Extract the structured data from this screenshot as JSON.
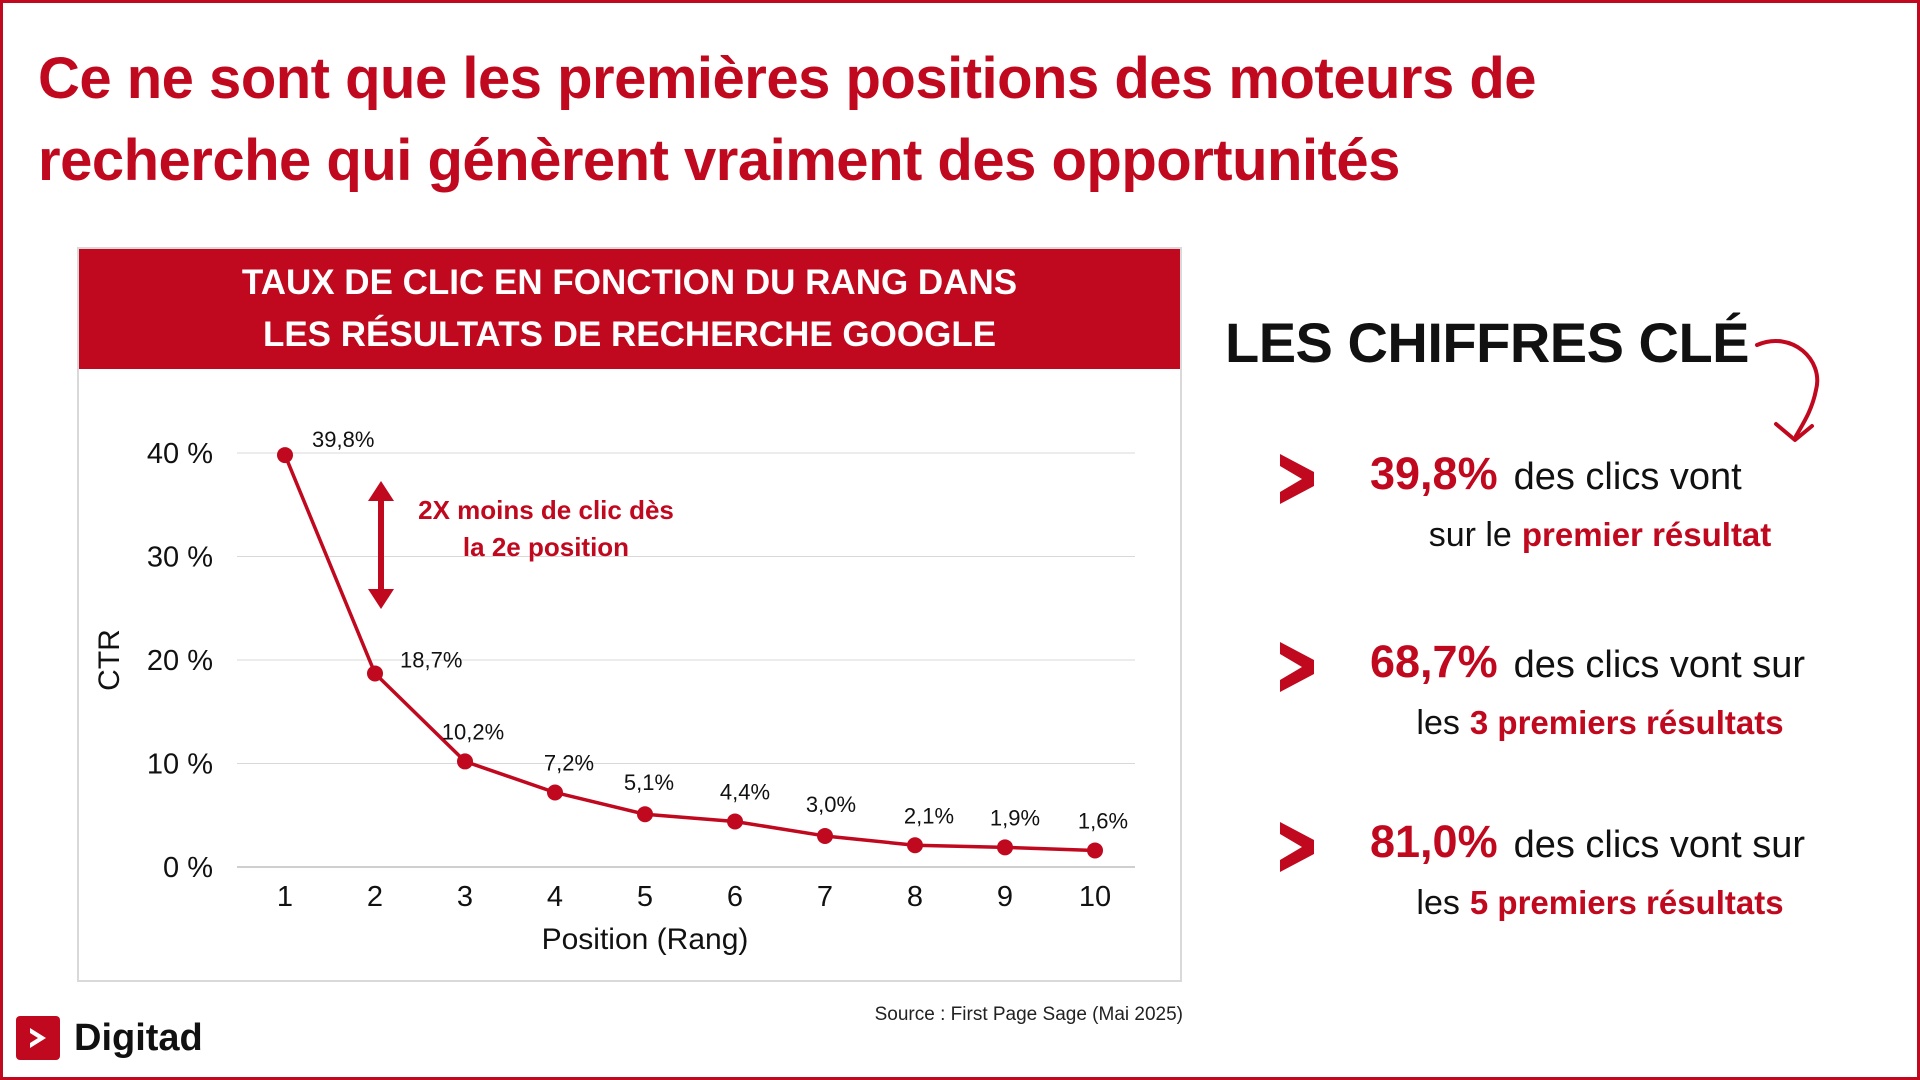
{
  "headline": {
    "line1": "Ce ne sont que les premières positions des moteurs de",
    "line2": "recherche qui génèrent vraiment des opportunités"
  },
  "chart_header": {
    "line1": "TAUX DE CLIC EN FONCTION DU RANG DANS",
    "line2": "LES RÉSULTATS DE RECHERCHE GOOGLE"
  },
  "chart_data": {
    "type": "line",
    "x": [
      1,
      2,
      3,
      4,
      5,
      6,
      7,
      8,
      9,
      10
    ],
    "values": [
      39.8,
      18.7,
      10.2,
      7.2,
      5.1,
      4.4,
      3.0,
      2.1,
      1.9,
      1.6
    ],
    "data_labels": [
      "39,8%",
      "18,7%",
      "10,2%",
      "7,2%",
      "5,1%",
      "4,4%",
      "3,0%",
      "2,1%",
      "1,9%",
      "1,6%"
    ],
    "xlabel": "Position (Rang)",
    "ylabel": "CTR",
    "ylim": [
      0,
      40
    ],
    "yticks": [
      0,
      10,
      20,
      30,
      40
    ],
    "ytick_labels": [
      "0 %",
      "10 %",
      "20 %",
      "30 %",
      "40 %"
    ],
    "xtick_labels": [
      "1",
      "2",
      "3",
      "4",
      "5",
      "6",
      "7",
      "8",
      "9",
      "10"
    ],
    "grid": true,
    "color": "#c0081e",
    "annotation": {
      "line1": "2X moins de clic dès",
      "line2": "la 2e position"
    }
  },
  "source": "Source : First Page Sage (Mai 2025)",
  "logo": {
    "text": "Digitad"
  },
  "key_figures": {
    "title": "LES CHIFFRES CLÉ",
    "items": [
      {
        "pct": "39,8%",
        "text1": "des clics vont",
        "text2_plain": "sur le",
        "text2_bold": "premier résultat"
      },
      {
        "pct": "68,7%",
        "text1": "des clics vont sur",
        "text2_plain": "les",
        "text2_bold": "3 premiers résultats"
      },
      {
        "pct": "81,0%",
        "text1": "des clics vont sur",
        "text2_plain": "les",
        "text2_bold": "5 premiers résultats"
      }
    ]
  },
  "colors": {
    "accent": "#c0081e",
    "text": "#111111",
    "grid": "#d9d9d9"
  },
  "icons": {
    "logo": "play-chevron-icon",
    "arrow": "curved-arrow-icon",
    "bullet": "chevron-right-icon"
  }
}
